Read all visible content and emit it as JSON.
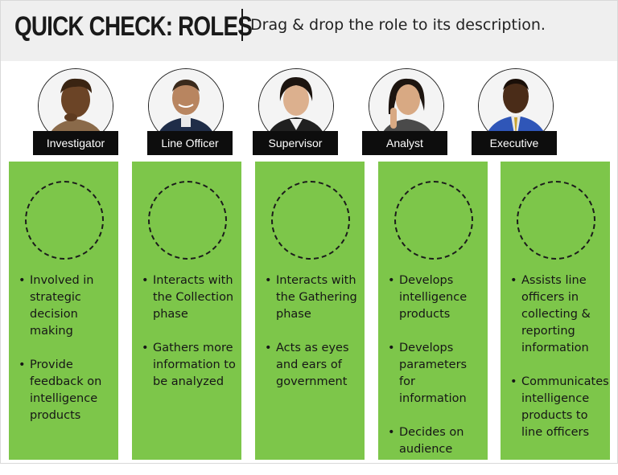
{
  "header": {
    "title": "QUICK CHECK: ROLES",
    "instruction": "Drag & drop the role to its description."
  },
  "roles": [
    {
      "label": "Investigator"
    },
    {
      "label": "Line Officer"
    },
    {
      "label": "Supervisor"
    },
    {
      "label": "Analyst"
    },
    {
      "label": "Executive"
    }
  ],
  "descriptions": [
    {
      "bullets": [
        "Involved in strategic decision making",
        "Provide feedback on intelligence products"
      ]
    },
    {
      "bullets": [
        "Interacts with the Collection phase",
        "Gathers more information to be analyzed"
      ]
    },
    {
      "bullets": [
        "Interacts with the Gathering phase",
        "Acts as eyes and ears of government"
      ]
    },
    {
      "bullets": [
        "Develops intelligence products",
        "Develops parameters for information",
        "Decides on audience"
      ]
    },
    {
      "bullets": [
        "Assists line officers in collecting & reporting information",
        "Communicates intelligence products to line officers"
      ]
    }
  ],
  "colors": {
    "header_bg": "#efefef",
    "column_green": "#7dc64a",
    "tag_black": "#0d0d0d"
  }
}
